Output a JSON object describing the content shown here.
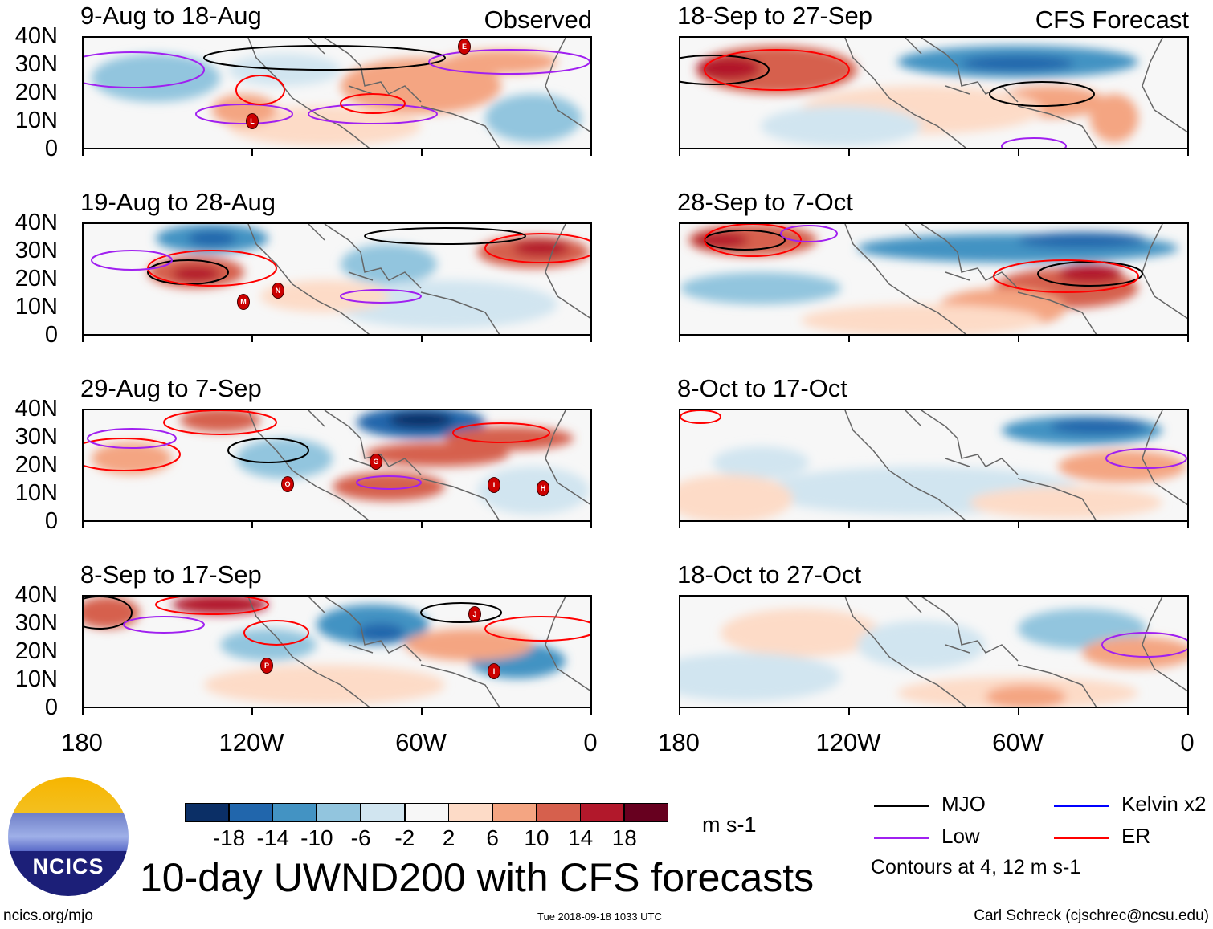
{
  "panels": [
    {
      "title": "9-Aug to 18-Aug",
      "tag": "Observed",
      "storms": [
        "L",
        "E"
      ]
    },
    {
      "title": "19-Aug to 28-Aug",
      "tag": "",
      "storms": [
        "M",
        "N"
      ]
    },
    {
      "title": "29-Aug to 7-Sep",
      "tag": "",
      "storms": [
        "O",
        "G",
        "I",
        "H"
      ]
    },
    {
      "title": "8-Sep to 17-Sep",
      "tag": "",
      "storms": [
        "P",
        "J",
        "I"
      ]
    },
    {
      "title": "18-Sep to 27-Sep",
      "tag": "CFS Forecast",
      "storms": []
    },
    {
      "title": "28-Sep to 7-Oct",
      "tag": "",
      "storms": []
    },
    {
      "title": "8-Oct to 17-Oct",
      "tag": "",
      "storms": []
    },
    {
      "title": "18-Oct to 27-Oct",
      "tag": "",
      "storms": []
    }
  ],
  "lat_labels": [
    "40N",
    "30N",
    "20N",
    "10N",
    "0"
  ],
  "lon_labels": [
    "180",
    "120W",
    "60W",
    "0"
  ],
  "colorbar": {
    "colors": [
      "#0b2f66",
      "#2166ac",
      "#4393c3",
      "#92c5de",
      "#d1e5f0",
      "#f7f7f7",
      "#fddbc7",
      "#f4a582",
      "#d6604d",
      "#b2182b",
      "#67001f"
    ],
    "labels": [
      "-18",
      "-14",
      "-10",
      "-6",
      "-2",
      "2",
      "6",
      "10",
      "14",
      "18"
    ],
    "units": "m s-1"
  },
  "title": "10-day UWND200 with CFS forecasts",
  "legend": {
    "items": [
      {
        "label": "MJO",
        "color": "#000000"
      },
      {
        "label": "Kelvin x2",
        "color": "#0000ff"
      },
      {
        "label": "Low",
        "color": "#a020f0"
      },
      {
        "label": "ER",
        "color": "#ff0000"
      }
    ],
    "note": "Contours at 4, 12 m s-1"
  },
  "logo_text": "NCICS",
  "footer": {
    "left": "ncics.org/mjo",
    "center": "Tue 2018-09-18 1033 UTC",
    "right": "Carl Schreck (cjschrec@ncsu.edu)"
  }
}
